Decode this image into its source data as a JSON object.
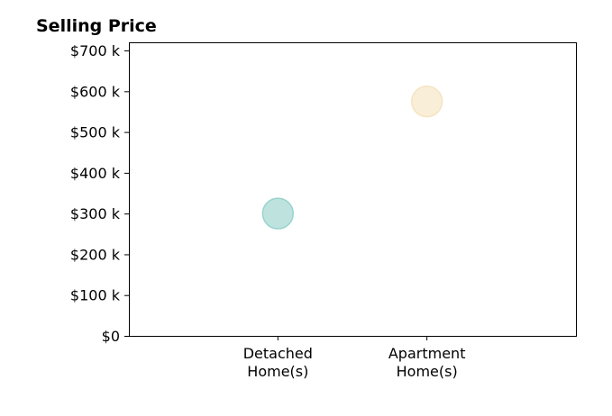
{
  "chart_data": {
    "type": "scatter",
    "title": "Selling Price",
    "xlabel": "",
    "ylabel": "",
    "categories": [
      "Detached\nHome(s)",
      "Apartment\nHome(s)"
    ],
    "x_positions": [
      1,
      2
    ],
    "xlim": [
      0,
      3
    ],
    "ylim": [
      0,
      720
    ],
    "yticks": [
      0,
      100,
      200,
      300,
      400,
      500,
      600,
      700
    ],
    "ytick_labels": [
      "$0",
      "$100 k",
      "$200 k",
      "$300 k",
      "$400 k",
      "$500 k",
      "$600 k",
      "$700 k"
    ],
    "points": [
      {
        "category": "Detached\nHome(s)",
        "x": 1,
        "y": 300,
        "color": "#7ec8c0"
      },
      {
        "category": "Apartment\nHome(s)",
        "x": 2,
        "y": 575,
        "color": "#f3ddb0"
      }
    ],
    "grid": false,
    "legend": "none"
  }
}
